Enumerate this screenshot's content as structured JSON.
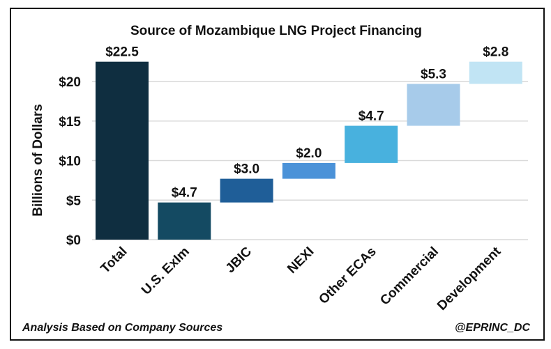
{
  "chart_data": {
    "type": "waterfall",
    "title": "Source of Mozambique LNG Project Financing",
    "ylabel": "Billions of Dollars",
    "xlabel": "",
    "ylim": [
      0,
      22.5
    ],
    "yticks": [
      0,
      5,
      10,
      15,
      20
    ],
    "ytick_labels": [
      "$0",
      "$5",
      "$10",
      "$15",
      "$20"
    ],
    "grid": true,
    "categories": [
      "Total",
      "U.S. ExIm",
      "JBIC",
      "NEXI",
      "Other ECAs",
      "Commercial",
      "Development"
    ],
    "values": [
      22.5,
      4.7,
      3.0,
      2.0,
      4.7,
      5.3,
      2.8
    ],
    "data_labels": [
      "$22.5",
      "$4.7",
      "$3.0",
      "$2.0",
      "$4.7",
      "$5.3",
      "$2.8"
    ],
    "colors": [
      "#0f2e40",
      "#144a62",
      "#1f5e98",
      "#4b92d8",
      "#48b1de",
      "#a7cbea",
      "#c1e4f4"
    ]
  },
  "footer": {
    "source": "Analysis Based on Company Sources",
    "handle": "@EPRINC_DC"
  }
}
